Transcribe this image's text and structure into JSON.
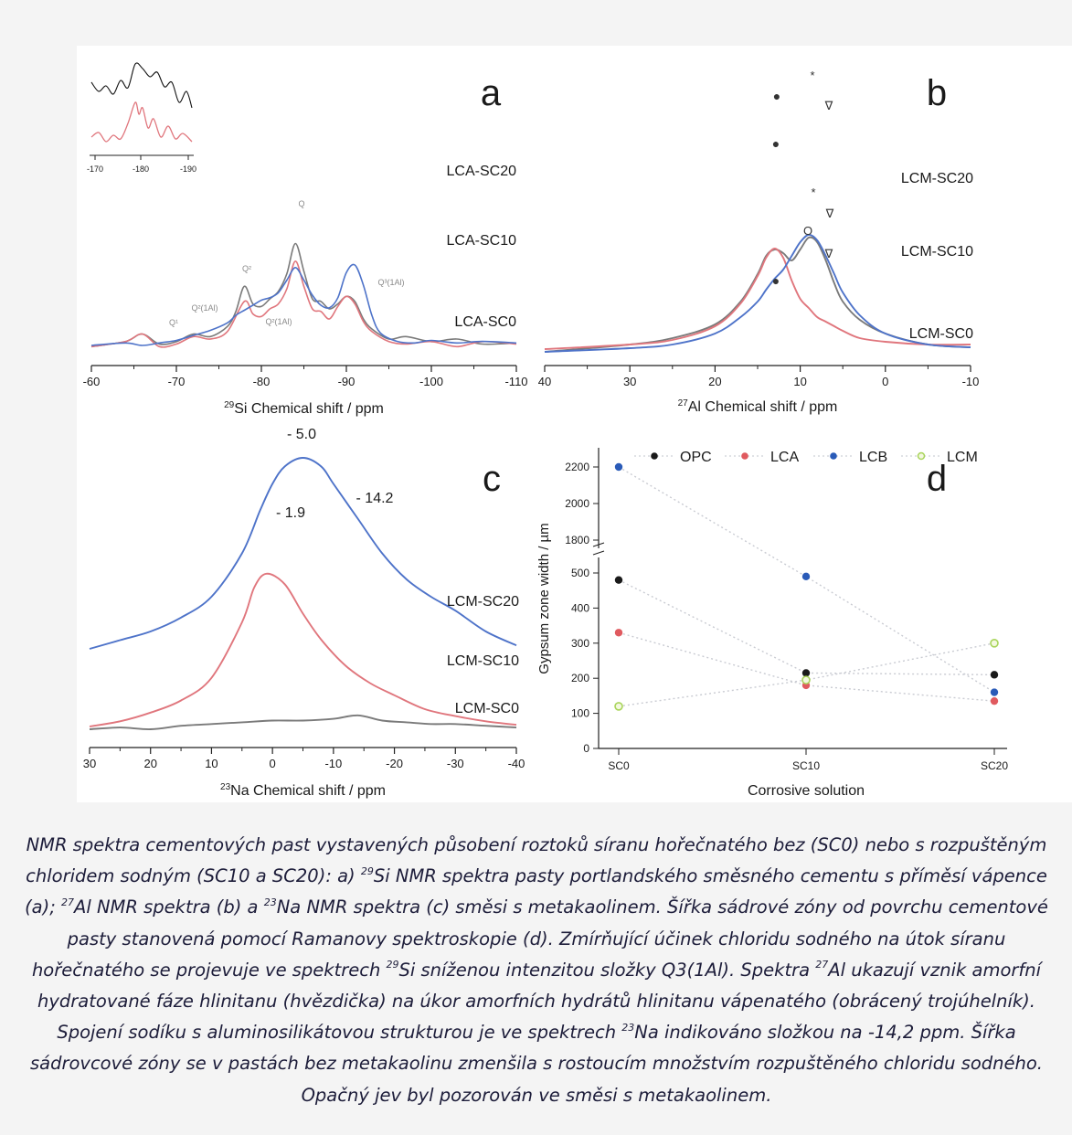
{
  "chart_data": [
    {
      "panel_letter": "a",
      "type": "line",
      "xlabel": "Si Chemical shift / ppm",
      "xlabel_sup": "29",
      "xlim": [
        -60,
        -110
      ],
      "xticks": [
        -60,
        -70,
        -80,
        -90,
        -100,
        -110
      ],
      "xtick_labels": [
        "-60",
        "-70",
        "-80",
        "-90",
        "-100",
        "-110"
      ],
      "series": [
        {
          "name": "LCA-SC20",
          "color": "#7a7a7a",
          "offset": 2.2,
          "x": [
            -60,
            -64,
            -66,
            -68,
            -70,
            -72,
            -74,
            -76,
            -77,
            -78,
            -79,
            -80,
            -81,
            -82,
            -83,
            -84,
            -85,
            -86,
            -87,
            -88,
            -89,
            -90,
            -91,
            -92,
            -93,
            -95,
            -97,
            -100,
            -103,
            -106,
            -110
          ],
          "y": [
            0.05,
            0.15,
            0.3,
            0.1,
            0.15,
            0.3,
            0.25,
            0.45,
            0.75,
            1.25,
            0.9,
            0.85,
            1.0,
            1.15,
            1.5,
            2.1,
            1.55,
            1.0,
            0.95,
            0.8,
            0.9,
            1.05,
            0.95,
            0.6,
            0.4,
            0.2,
            0.25,
            0.15,
            0.2,
            0.1,
            0.12
          ]
        },
        {
          "name": "LCA-SC10",
          "color": "#e0767d",
          "offset": 1.15,
          "x": [
            -60,
            -64,
            -66,
            -68,
            -70,
            -72,
            -74,
            -76,
            -78,
            -79,
            -80,
            -81,
            -82,
            -83,
            -84,
            -85,
            -86,
            -87,
            -88,
            -89,
            -90,
            -91,
            -92,
            -93,
            -95,
            -97,
            -100,
            -103,
            -106,
            -110
          ],
          "y": [
            0.05,
            0.15,
            0.3,
            0.05,
            0.1,
            0.25,
            0.2,
            0.35,
            0.95,
            0.7,
            0.65,
            0.8,
            0.9,
            1.2,
            1.75,
            1.25,
            0.8,
            0.75,
            0.6,
            0.85,
            1.05,
            0.9,
            0.55,
            0.35,
            0.15,
            0.1,
            0.15,
            0.05,
            0.15,
            0.1
          ]
        },
        {
          "name": "LCA-SC0",
          "color": "#4e73c9",
          "offset": 0,
          "x": [
            -60,
            -64,
            -66,
            -68,
            -70,
            -72,
            -74,
            -76,
            -77,
            -78,
            -79,
            -80,
            -81,
            -82,
            -83,
            -84,
            -85,
            -86,
            -87,
            -88,
            -89,
            -90,
            -91,
            -92,
            -93,
            -94,
            -96,
            -98,
            -100,
            -103,
            -106,
            -110
          ],
          "y": [
            0.0,
            0.05,
            0.0,
            0.05,
            0.1,
            0.2,
            0.3,
            0.45,
            0.6,
            0.7,
            0.8,
            0.9,
            0.95,
            1.05,
            1.3,
            1.55,
            1.3,
            1.0,
            0.8,
            0.75,
            0.95,
            1.45,
            1.6,
            1.2,
            0.6,
            0.25,
            0.08,
            0.05,
            0.1,
            0.05,
            0.08,
            0.05
          ]
        }
      ],
      "annotations": [
        "Q¹",
        "Q²(1Al)",
        "Q²",
        "Q²(1Al)",
        "Q³(1Al)"
      ],
      "inset": {
        "xticks": [
          "-170",
          "-180",
          "-190"
        ]
      }
    },
    {
      "panel_letter": "b",
      "type": "line",
      "xlabel": "Al Chemical shift / ppm",
      "xlabel_sup": "27",
      "xlim": [
        40,
        -10
      ],
      "xticks": [
        40,
        30,
        20,
        10,
        0,
        -10
      ],
      "xtick_labels": [
        "40",
        "30",
        "20",
        "10",
        "0",
        "-10"
      ],
      "series": [
        {
          "name": "LCM-SC20",
          "color": "#7a7a7a",
          "offset": 1.75,
          "x": [
            40,
            30,
            25,
            20,
            17,
            15,
            14,
            13,
            12,
            11,
            10,
            9,
            8,
            7,
            6,
            5,
            3,
            0,
            -5,
            -10
          ],
          "y": [
            0.0,
            0.08,
            0.15,
            0.3,
            0.55,
            0.85,
            1.05,
            1.12,
            1.08,
            1.0,
            1.12,
            1.25,
            1.2,
            1.0,
            0.75,
            0.55,
            0.35,
            0.2,
            0.08,
            0.05
          ]
        },
        {
          "name": "LCM-SC10",
          "color": "#e0767d",
          "offset": 0.95,
          "x": [
            40,
            30,
            25,
            20,
            17,
            15,
            14,
            13,
            12,
            11,
            10,
            9,
            8,
            7,
            6,
            5,
            3,
            0,
            -5,
            -10
          ],
          "y": [
            0.0,
            0.05,
            0.1,
            0.25,
            0.5,
            0.8,
            1.0,
            1.1,
            1.0,
            0.75,
            0.55,
            0.45,
            0.35,
            0.3,
            0.25,
            0.2,
            0.12,
            0.08,
            0.05,
            0.05
          ]
        },
        {
          "name": "LCM-SC0",
          "color": "#4e73c9",
          "offset": 0,
          "x": [
            40,
            30,
            25,
            20,
            17,
            15,
            14,
            13,
            12,
            11,
            10,
            9,
            8,
            7,
            6,
            5,
            3,
            0,
            -5,
            -10
          ],
          "y": [
            0.0,
            0.04,
            0.08,
            0.2,
            0.38,
            0.55,
            0.68,
            0.8,
            0.9,
            1.05,
            1.2,
            1.28,
            1.22,
            1.05,
            0.85,
            0.65,
            0.4,
            0.2,
            0.08,
            0.05
          ]
        }
      ],
      "markers": [
        "●",
        "*",
        "∇",
        "O"
      ]
    },
    {
      "panel_letter": "c",
      "type": "line",
      "xlabel": "Na Chemical shift / ppm",
      "xlabel_sup": "23",
      "xlim": [
        30,
        -40
      ],
      "xticks": [
        30,
        20,
        10,
        0,
        -10,
        -20,
        -30,
        -40
      ],
      "xtick_labels": [
        "30",
        "20",
        "10",
        "0",
        "-10",
        "-20",
        "-30",
        "-40"
      ],
      "series": [
        {
          "name": "LCM-SC20",
          "color": "#4e73c9",
          "offset": 0.55,
          "x": [
            30,
            25,
            20,
            15,
            10,
            5,
            2,
            0,
            -2,
            -5,
            -8,
            -10,
            -14,
            -18,
            -22,
            -26,
            -30,
            -35,
            -40
          ],
          "y": [
            0.0,
            0.05,
            0.1,
            0.18,
            0.3,
            0.55,
            0.8,
            0.95,
            1.05,
            1.1,
            1.05,
            0.95,
            0.75,
            0.55,
            0.4,
            0.3,
            0.22,
            0.1,
            0.02
          ]
        },
        {
          "name": "LCM-SC10",
          "color": "#e0767d",
          "offset": 0.25,
          "x": [
            30,
            25,
            20,
            15,
            10,
            5,
            3,
            1,
            -2,
            -5,
            -8,
            -12,
            -16,
            -20,
            -25,
            -30,
            -35,
            -40
          ],
          "y": [
            0.0,
            0.03,
            0.08,
            0.15,
            0.28,
            0.6,
            0.8,
            0.88,
            0.82,
            0.65,
            0.5,
            0.35,
            0.25,
            0.18,
            0.1,
            0.06,
            0.03,
            0.01
          ]
        },
        {
          "name": "LCM-SC0",
          "color": "#7a7a7a",
          "offset": 0,
          "x": [
            30,
            25,
            20,
            15,
            10,
            5,
            0,
            -5,
            -10,
            -14,
            -18,
            -22,
            -26,
            -30,
            -35,
            -40
          ],
          "y": [
            0.0,
            0.01,
            0.0,
            0.02,
            0.03,
            0.04,
            0.05,
            0.05,
            0.06,
            0.08,
            0.05,
            0.04,
            0.03,
            0.03,
            0.02,
            0.01
          ]
        }
      ],
      "labels": [
        "- 5.0",
        "- 1.9",
        "- 14.2"
      ]
    },
    {
      "panel_letter": "d",
      "type": "scatter",
      "xlabel": "Corrosive solution",
      "ylabel": "Gypsum zone width / µm",
      "categories": [
        "SC0",
        "SC10",
        "SC20"
      ],
      "yticks": [
        "0",
        "100",
        "200",
        "300",
        "400",
        "500",
        "1800",
        "2000",
        "2200"
      ],
      "ylim": [
        0,
        2200
      ],
      "axis_break": [
        520,
        1780
      ],
      "legend_position": "top",
      "series": [
        {
          "name": "OPC",
          "color": "#1a1a1a",
          "marker": "filled",
          "values": [
            480,
            215,
            210
          ]
        },
        {
          "name": "LCA",
          "color": "#e05a5f",
          "marker": "filled",
          "values": [
            330,
            180,
            135
          ]
        },
        {
          "name": "LCB",
          "color": "#2a5bb8",
          "marker": "filled",
          "values": [
            2200,
            490,
            160
          ]
        },
        {
          "name": "LCM",
          "color": "#a8d45a",
          "marker": "open",
          "values": [
            120,
            195,
            300
          ]
        }
      ]
    }
  ],
  "caption": [
    {
      "t": "NMR spektra cementových past vystavených působení roztoků síranu hořečnatého bez (SC0) nebo s rozpuštěným chloridem sodným (SC10 a SC20): a) "
    },
    {
      "sup": "29"
    },
    {
      "t": "Si NMR spektra pasty portlandského směsného cementu s příměsí vápence (a); "
    },
    {
      "sup": "27"
    },
    {
      "t": "Al NMR spektra (b) a "
    },
    {
      "sup": "23"
    },
    {
      "t": "Na NMR spektra (c) směsi s metakaolinem. Šířka sádrové zóny od povrchu cementové pasty stanovená pomocí Ramanovy spektroskopie (d). Zmírňující účinek chloridu sodného na útok síranu hořečnatého se projevuje ve spektrech "
    },
    {
      "sup": "29"
    },
    {
      "t": "Si sníženou intenzitou složky Q3(1Al). Spektra "
    },
    {
      "sup": "27"
    },
    {
      "t": "Al ukazují vznik amorfní hydratované fáze hlinitanu (hvězdička) na úkor amorfních hydrátů hlinitanu vápenatého (obrácený trojúhelník). Spojení sodíku s aluminosilikátovou strukturou je ve spektrech "
    },
    {
      "sup": "23"
    },
    {
      "t": "Na indikováno složkou na -14,2 ppm. Šířka sádrovcové zóny se v pastách bez metakaolinu zmenšila s rostoucím množstvím rozpuštěného chloridu sodného. Opačný jev byl pozorován ve směsi s metakaolinem."
    }
  ]
}
